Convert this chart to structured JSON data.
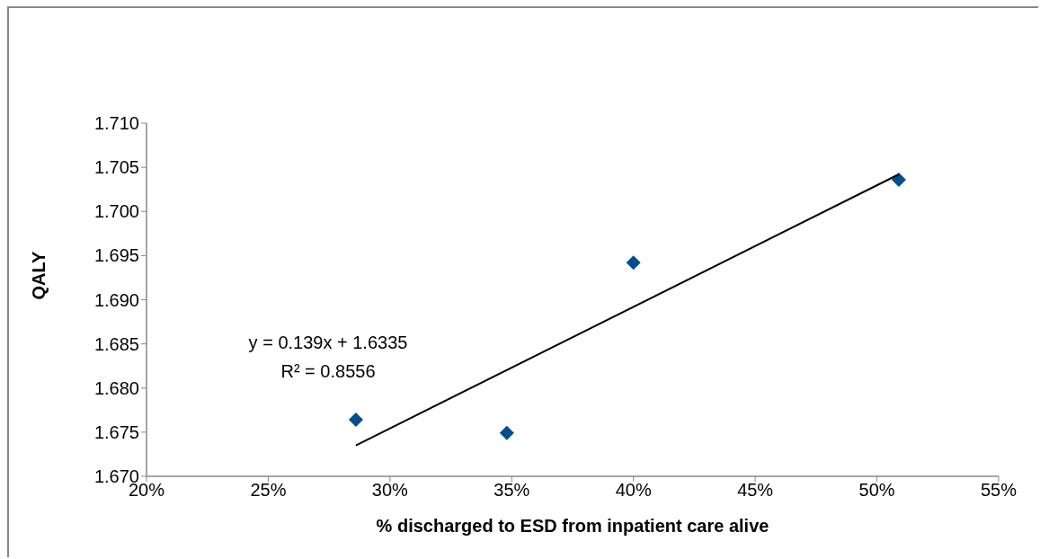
{
  "chart_data": {
    "type": "scatter",
    "xlabel": "% discharged to ESD from inpatient care alive",
    "ylabel": "QALY",
    "xlim": [
      20,
      55
    ],
    "xticks": [
      {
        "value": 20,
        "label": "20%"
      },
      {
        "value": 25,
        "label": "25%"
      },
      {
        "value": 30,
        "label": "30%"
      },
      {
        "value": 35,
        "label": "35%"
      },
      {
        "value": 40,
        "label": "40%"
      },
      {
        "value": 45,
        "label": "45%"
      },
      {
        "value": 50,
        "label": "50%"
      },
      {
        "value": 55,
        "label": "55%"
      }
    ],
    "ylim": [
      1.67,
      1.71
    ],
    "yticks": [
      {
        "value": 1.67,
        "label": "1.670"
      },
      {
        "value": 1.675,
        "label": "1.675"
      },
      {
        "value": 1.68,
        "label": "1.680"
      },
      {
        "value": 1.685,
        "label": "1.685"
      },
      {
        "value": 1.69,
        "label": "1.690"
      },
      {
        "value": 1.695,
        "label": "1.695"
      },
      {
        "value": 1.7,
        "label": "1.700"
      },
      {
        "value": 1.705,
        "label": "1.705"
      },
      {
        "value": 1.71,
        "label": "1.710"
      }
    ],
    "marker": "diamond",
    "grid": false,
    "legend": false,
    "series": [
      {
        "color": "#004f8c",
        "x": [
          28.6,
          34.8,
          40.0,
          50.9
        ],
        "values": [
          1.6764,
          1.6749,
          1.6942,
          1.7036
        ]
      },
      {
        "type": "line",
        "marker": "none",
        "color": "#000000",
        "x": [
          28.6,
          50.9
        ],
        "values": [
          1.6735,
          1.7042
        ]
      }
    ],
    "annotations": [
      "y = 0.139x + 1.6335",
      "R² = 0.8556"
    ]
  }
}
